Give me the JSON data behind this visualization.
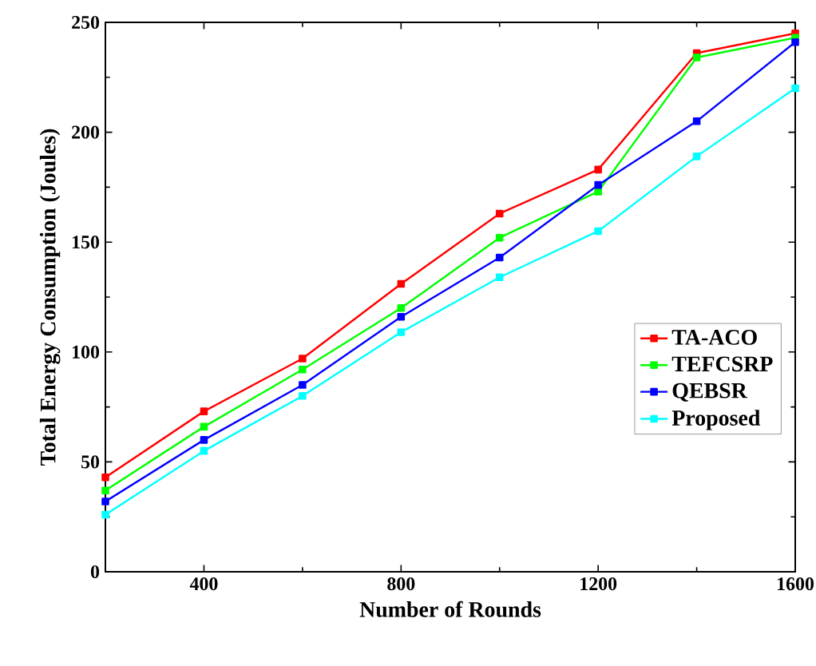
{
  "chart_data": {
    "type": "line",
    "xlabel": "Number of Rounds",
    "ylabel": "Total Energy Consumption (Joules)",
    "x": [
      200,
      400,
      600,
      800,
      1000,
      1200,
      1400,
      1600
    ],
    "xlim": [
      200,
      1600
    ],
    "ylim": [
      0,
      250
    ],
    "xticks": [
      400,
      800,
      1200,
      1600
    ],
    "yticks": [
      0,
      50,
      100,
      150,
      200,
      250
    ],
    "grid": false,
    "legend": "right",
    "marker": "square",
    "line_style": "solid",
    "series": [
      {
        "name": "TA-ACO",
        "color": "#ff0000",
        "values": [
          43,
          73,
          97,
          131,
          163,
          183,
          236,
          245
        ]
      },
      {
        "name": "TEFCSRP",
        "color": "#00ff00",
        "values": [
          37,
          66,
          92,
          120,
          152,
          173,
          234,
          243
        ]
      },
      {
        "name": "QEBSR",
        "color": "#0000ff",
        "values": [
          32,
          60,
          85,
          116,
          143,
          176,
          205,
          241
        ]
      },
      {
        "name": "Proposed",
        "color": "#00ffff",
        "values": [
          26,
          55,
          80,
          109,
          134,
          155,
          189,
          220
        ]
      }
    ]
  }
}
